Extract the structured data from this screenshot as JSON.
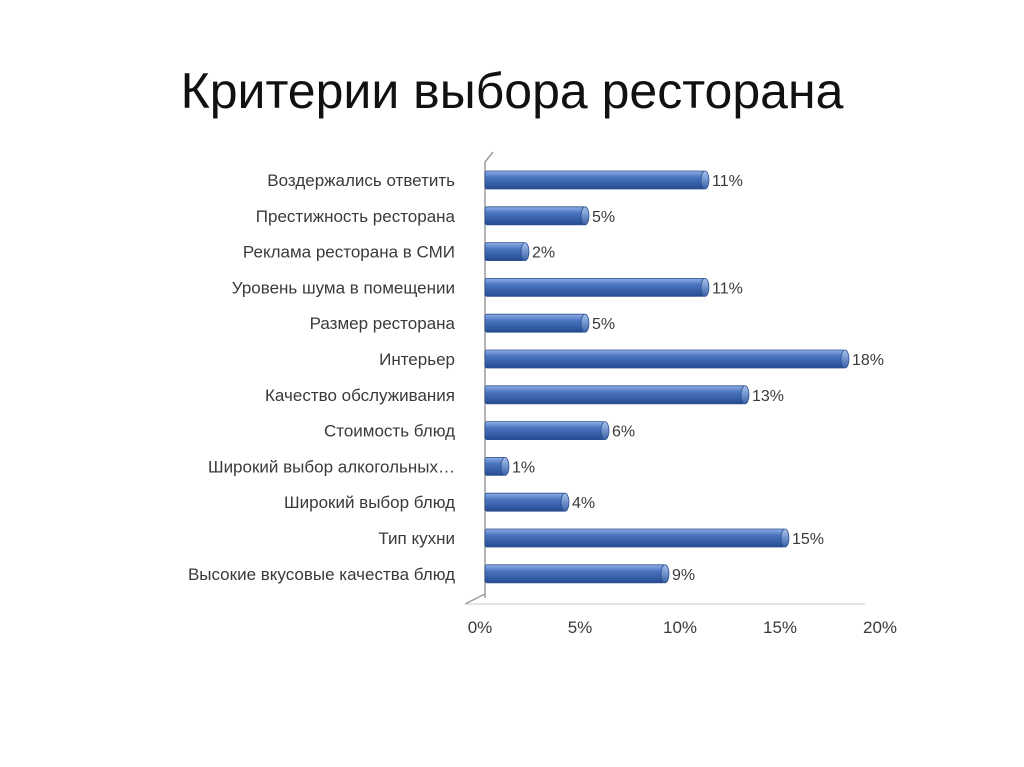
{
  "slide": {
    "title": "Критерии выбора ресторана"
  },
  "chart_data": {
    "type": "bar",
    "orientation": "horizontal",
    "categories": [
      "Воздержались ответить",
      "Престижность ресторана",
      "Реклама ресторана в СМИ",
      "Уровень шума в помещении",
      "Размер ресторана",
      "Интерьер",
      "Качество обслуживания",
      "Стоимость блюд",
      "Широкий выбор алкогольных…",
      "Широкий выбор блюд",
      "Тип кухни",
      "Высокие вкусовые качества блюд"
    ],
    "values": [
      11,
      5,
      2,
      11,
      5,
      18,
      13,
      6,
      1,
      4,
      15,
      9
    ],
    "data_labels": [
      "11%",
      "5%",
      "2%",
      "11%",
      "5%",
      "18%",
      "13%",
      "6%",
      "1%",
      "4%",
      "15%",
      "9%"
    ],
    "x_ticks": [
      "0%",
      "5%",
      "10%",
      "15%",
      "20%"
    ],
    "xlim": [
      0,
      20
    ],
    "grid": false,
    "legend": "none",
    "bar_color": "#3f68b1",
    "bar_highlight": "#7ea3de",
    "bar_shadow": "#1f3f7a"
  }
}
